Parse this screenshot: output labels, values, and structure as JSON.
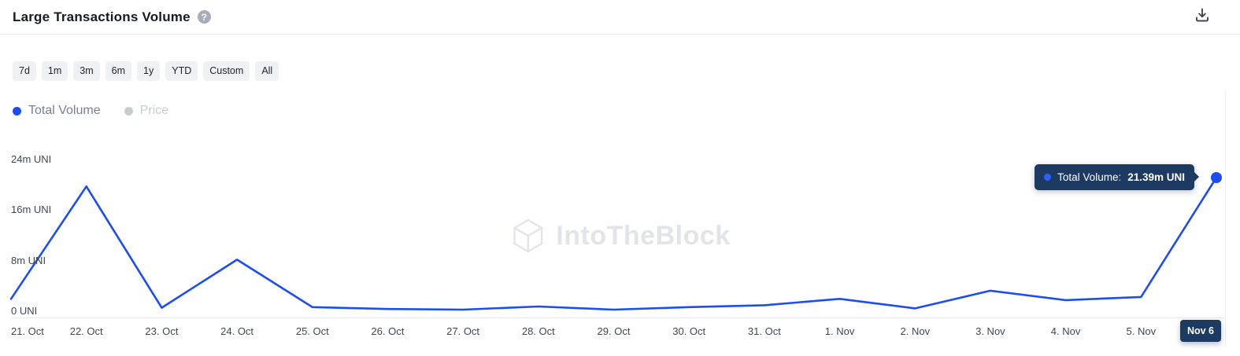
{
  "header": {
    "title": "Large Transactions Volume",
    "help_label": "?"
  },
  "time_ranges": [
    "7d",
    "1m",
    "3m",
    "6m",
    "1y",
    "YTD",
    "Custom",
    "All"
  ],
  "legend": {
    "items": [
      {
        "label": "Total Volume",
        "color": "#1b4df2",
        "active": true
      },
      {
        "label": "Price",
        "color": "#c6ccd4",
        "active": false
      }
    ]
  },
  "tooltip": {
    "label": "Total Volume:",
    "value": "21.39m UNI"
  },
  "watermark": {
    "text": "IntoTheBlock"
  },
  "colors": {
    "line": "#1b4df2",
    "tooltip_bg": "#1d3a62",
    "badge_bg": "#1d3a62",
    "axis_text": "#3e4653"
  },
  "chart_data": {
    "type": "line",
    "title": "Large Transactions Volume",
    "series_name": "Total Volume",
    "unit": "UNI",
    "x": [
      "21. Oct",
      "22. Oct",
      "23. Oct",
      "24. Oct",
      "25. Oct",
      "26. Oct",
      "27. Oct",
      "28. Oct",
      "29. Oct",
      "30. Oct",
      "31. Oct",
      "1. Nov",
      "2. Nov",
      "3. Nov",
      "4. Nov",
      "5. Nov",
      "Nov 6"
    ],
    "values_m_uni": [
      2.2,
      20.0,
      0.8,
      8.4,
      0.9,
      0.6,
      0.5,
      1.0,
      0.5,
      0.9,
      1.2,
      2.2,
      0.7,
      3.5,
      2.0,
      2.5,
      21.39
    ],
    "yticks": [
      {
        "value": 0,
        "label": "0 UNI"
      },
      {
        "value": 8,
        "label": "8m UNI"
      },
      {
        "value": 16,
        "label": "16m UNI"
      },
      {
        "value": 24,
        "label": "24m UNI"
      }
    ],
    "ylim": [
      0,
      24
    ],
    "highlighted_x": "Nov 6",
    "last_point_label": "21.39m UNI",
    "grid": false,
    "legend_position": "top-left"
  }
}
